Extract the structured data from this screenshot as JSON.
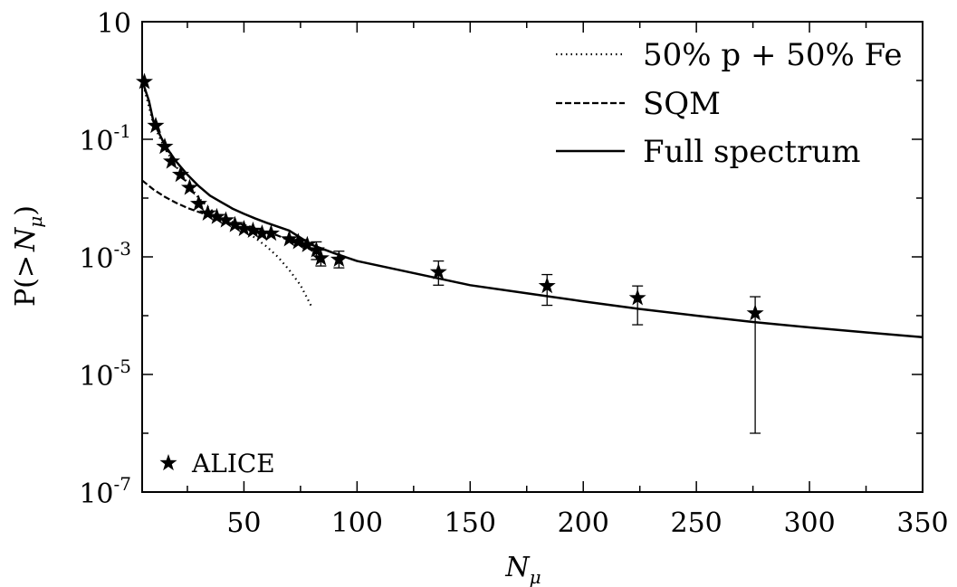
{
  "chart_data": {
    "type": "line",
    "title": "",
    "xlabel_main": "N",
    "xlabel_sub": "μ",
    "ylabel_parts": [
      "P(>",
      "N",
      "μ",
      ")"
    ],
    "xlim": [
      5,
      350
    ],
    "ylim": [
      1e-07,
      10
    ],
    "yscale": "log",
    "grid": false,
    "x_ticks": [
      50,
      100,
      150,
      200,
      250,
      300,
      350
    ],
    "x_tick_labels": [
      "50",
      "100",
      "150",
      "200",
      "250",
      "300",
      "350"
    ],
    "y_ticks": [
      10,
      0.1,
      0.001,
      1e-05,
      1e-07
    ],
    "y_tick_labels": [
      {
        "base": "10",
        "exp": ""
      },
      {
        "base": "10",
        "exp": "-1"
      },
      {
        "base": "10",
        "exp": "-3"
      },
      {
        "base": "10",
        "exp": "-5"
      },
      {
        "base": "10",
        "exp": "-7"
      }
    ],
    "legend_position": "top-right",
    "series": [
      {
        "name": "50% p + 50% Fe",
        "style": "dotted",
        "x": [
          5,
          10,
          15,
          20,
          25,
          30,
          35,
          40,
          45,
          50,
          55,
          60,
          65,
          70,
          75,
          80
        ],
        "y": [
          1.0,
          0.18,
          0.07,
          0.035,
          0.018,
          0.01,
          0.0065,
          0.0048,
          0.0036,
          0.0028,
          0.0021,
          0.0015,
          0.001,
          0.0006,
          0.00033,
          0.00014
        ]
      },
      {
        "name": "SQM",
        "style": "dashed",
        "x": [
          5,
          10,
          15,
          20,
          25,
          30,
          35,
          40,
          45,
          50,
          55,
          60,
          65,
          70,
          75,
          80
        ],
        "y": [
          0.02,
          0.014,
          0.0105,
          0.0083,
          0.0068,
          0.0058,
          0.005,
          0.0044,
          0.0039,
          0.0035,
          0.0031,
          0.0027,
          0.0023,
          0.0019,
          0.0016,
          0.0013
        ]
      },
      {
        "name": "Full spectrum",
        "style": "solid",
        "x": [
          5,
          8,
          10,
          15,
          20,
          25,
          30,
          35,
          40,
          45,
          50,
          55,
          60,
          70,
          80,
          90,
          100,
          125,
          150,
          175,
          200,
          225,
          250,
          275,
          300,
          325,
          350
        ],
        "y": [
          1.0,
          0.45,
          0.2,
          0.08,
          0.042,
          0.025,
          0.016,
          0.011,
          0.0085,
          0.0066,
          0.0054,
          0.0045,
          0.0038,
          0.0028,
          0.0016,
          0.00115,
          0.00085,
          0.00053,
          0.00033,
          0.00024,
          0.000175,
          0.00013,
          0.0001,
          7.8e-05,
          6.3e-05,
          5.2e-05,
          4.3e-05
        ]
      }
    ],
    "alice": {
      "name": "ALICE",
      "marker": "star",
      "x": [
        6,
        11,
        15,
        18,
        22,
        26,
        30,
        34,
        38,
        42,
        46,
        50,
        54,
        58,
        62,
        70,
        74,
        78,
        82,
        84,
        92,
        136,
        184,
        224,
        276
      ],
      "y": [
        0.95,
        0.17,
        0.075,
        0.042,
        0.025,
        0.015,
        0.008,
        0.0055,
        0.0048,
        0.0042,
        0.0035,
        0.003,
        0.0028,
        0.0025,
        0.0025,
        0.002,
        0.0018,
        0.0016,
        0.0013,
        0.00095,
        0.0009,
        0.00055,
        0.00032,
        0.0002,
        0.00011
      ],
      "err_low": [
        null,
        null,
        null,
        null,
        null,
        null,
        null,
        null,
        null,
        null,
        null,
        null,
        null,
        null,
        null,
        null,
        null,
        null,
        0.0009,
        0.0007,
        0.00065,
        0.00033,
        0.00015,
        7e-05,
        1e-06
      ],
      "err_high": [
        null,
        null,
        null,
        null,
        null,
        null,
        null,
        null,
        null,
        null,
        null,
        null,
        null,
        null,
        null,
        null,
        null,
        null,
        0.0018,
        0.0013,
        0.00125,
        0.00085,
        0.0005,
        0.00032,
        0.00021
      ]
    }
  }
}
